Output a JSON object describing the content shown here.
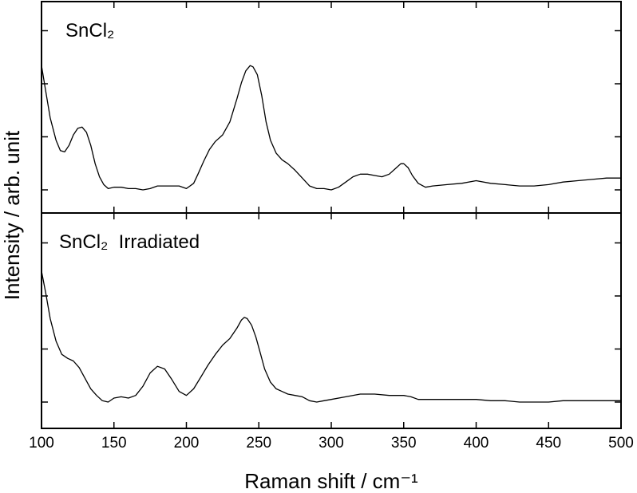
{
  "chart_data": {
    "type": "line",
    "xlabel": "Raman shift / cm⁻¹",
    "ylabel": "Intensity / arb. unit",
    "xlim": [
      100,
      500
    ],
    "x_ticks": [
      "100",
      "150",
      "200",
      "250",
      "300",
      "350",
      "400",
      "450",
      "500"
    ],
    "grid": false,
    "ylim": [
      0,
      1
    ],
    "panels": [
      {
        "label": "SnCl₂",
        "series": [
          {
            "x": [
              100,
              103,
              106,
              110,
              113,
              116,
              119,
              122,
              125,
              128,
              131,
              134,
              137,
              140,
              143,
              146,
              150,
              155,
              160,
              165,
              170,
              175,
              180,
              190,
              195,
              200,
              205,
              208,
              212,
              216,
              220,
              225,
              230,
              235,
              238,
              241,
              244,
              246,
              249,
              252,
              255,
              258,
              262,
              266,
              270,
              275,
              280,
              285,
              290,
              295,
              300,
              305,
              310,
              315,
              320,
              325,
              330,
              335,
              340,
              345,
              348,
              350,
              353,
              356,
              360,
              365,
              370,
              380,
              390,
              400,
              410,
              420,
              430,
              440,
              450,
              460,
              470,
              480,
              490,
              500
            ],
            "values": [
              0.95,
              0.75,
              0.55,
              0.38,
              0.3,
              0.29,
              0.34,
              0.42,
              0.47,
              0.48,
              0.44,
              0.34,
              0.2,
              0.1,
              0.04,
              0.01,
              0.02,
              0.02,
              0.01,
              0.01,
              0.0,
              0.01,
              0.03,
              0.03,
              0.03,
              0.01,
              0.05,
              0.12,
              0.22,
              0.31,
              0.37,
              0.42,
              0.52,
              0.7,
              0.82,
              0.91,
              0.95,
              0.94,
              0.88,
              0.72,
              0.52,
              0.38,
              0.28,
              0.23,
              0.2,
              0.15,
              0.09,
              0.03,
              0.01,
              0.01,
              0.0,
              0.02,
              0.06,
              0.1,
              0.12,
              0.12,
              0.11,
              0.1,
              0.12,
              0.17,
              0.2,
              0.2,
              0.17,
              0.11,
              0.05,
              0.02,
              0.03,
              0.04,
              0.05,
              0.07,
              0.05,
              0.04,
              0.03,
              0.03,
              0.04,
              0.06,
              0.07,
              0.08,
              0.09,
              0.09
            ]
          }
        ]
      },
      {
        "label": "SnCl₂  Irradiated",
        "series": [
          {
            "x": [
              100,
              103,
              106,
              110,
              114,
              118,
              122,
              126,
              130,
              134,
              138,
              142,
              146,
              150,
              155,
              160,
              165,
              170,
              175,
              180,
              185,
              190,
              195,
              200,
              205,
              210,
              215,
              220,
              225,
              230,
              235,
              238,
              240,
              242,
              245,
              248,
              251,
              254,
              258,
              262,
              266,
              270,
              275,
              280,
              285,
              290,
              295,
              300,
              310,
              320,
              325,
              330,
              340,
              350,
              355,
              360,
              370,
              380,
              390,
              400,
              410,
              420,
              430,
              440,
              450,
              460,
              470,
              480,
              490,
              500
            ],
            "values": [
              0.99,
              0.82,
              0.63,
              0.46,
              0.36,
              0.33,
              0.31,
              0.26,
              0.18,
              0.1,
              0.05,
              0.01,
              0.0,
              0.03,
              0.04,
              0.03,
              0.05,
              0.12,
              0.22,
              0.27,
              0.25,
              0.17,
              0.08,
              0.05,
              0.1,
              0.19,
              0.28,
              0.36,
              0.43,
              0.48,
              0.56,
              0.62,
              0.64,
              0.63,
              0.58,
              0.49,
              0.37,
              0.25,
              0.15,
              0.1,
              0.08,
              0.06,
              0.05,
              0.04,
              0.01,
              0.0,
              0.01,
              0.02,
              0.04,
              0.06,
              0.06,
              0.06,
              0.05,
              0.05,
              0.04,
              0.02,
              0.02,
              0.02,
              0.02,
              0.02,
              0.01,
              0.01,
              0.0,
              0.0,
              0.0,
              0.01,
              0.01,
              0.01,
              0.01,
              0.01
            ]
          }
        ]
      }
    ]
  }
}
